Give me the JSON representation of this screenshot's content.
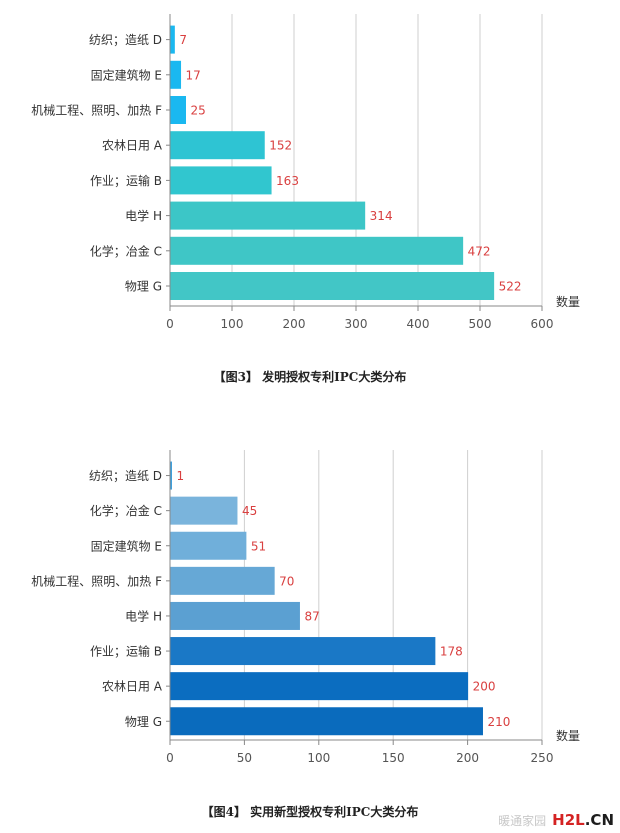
{
  "chart_data": [
    {
      "type": "bar",
      "orientation": "horizontal",
      "categories": [
        "纺织；造纸 D",
        "固定建筑物 E",
        "机械工程、照明、加热 F",
        "农林日用 A",
        "作业；运输 B",
        "电学 H",
        "化学；冶金 C",
        "物理 G"
      ],
      "values": [
        7,
        17,
        25,
        152,
        163,
        314,
        472,
        522
      ],
      "xlabel": "数量",
      "xlim": [
        0,
        600
      ],
      "xticks": [
        0,
        100,
        200,
        300,
        400,
        500,
        600
      ],
      "grid": true,
      "colors": [
        "#1ab8f0",
        "#1ab8f0",
        "#1ab8f0",
        "#2ec4d3",
        "#31c6cf",
        "#3cc6c7",
        "#3fc6c6",
        "#42c6c6"
      ],
      "label_color": "#d94040",
      "caption": "【图3】 发明授权专利IPC大类分布"
    },
    {
      "type": "bar",
      "orientation": "horizontal",
      "categories": [
        "纺织；造纸 D",
        "化学；冶金 C",
        "固定建筑物 E",
        "机械工程、照明、加热 F",
        "电学 H",
        "作业；运输 B",
        "农林日用 A",
        "物理 G"
      ],
      "values": [
        1,
        45,
        51,
        70,
        87,
        178,
        200,
        210
      ],
      "xlabel": "数量",
      "xlim": [
        0,
        250
      ],
      "xticks": [
        0,
        50,
        100,
        150,
        200,
        250
      ],
      "grid": true,
      "colors": [
        "#3fa0dc",
        "#7ab4dc",
        "#70afda",
        "#66a8d6",
        "#5ba0d2",
        "#1a78c6",
        "#0b6dc0",
        "#0a6bbd"
      ],
      "label_color": "#d94040",
      "caption": "【图4】 实用新型授权专利IPC大类分布"
    }
  ],
  "logo": {
    "text_main": "H2L",
    "text_suffix": ".CN",
    "faint": "暖通家园"
  }
}
